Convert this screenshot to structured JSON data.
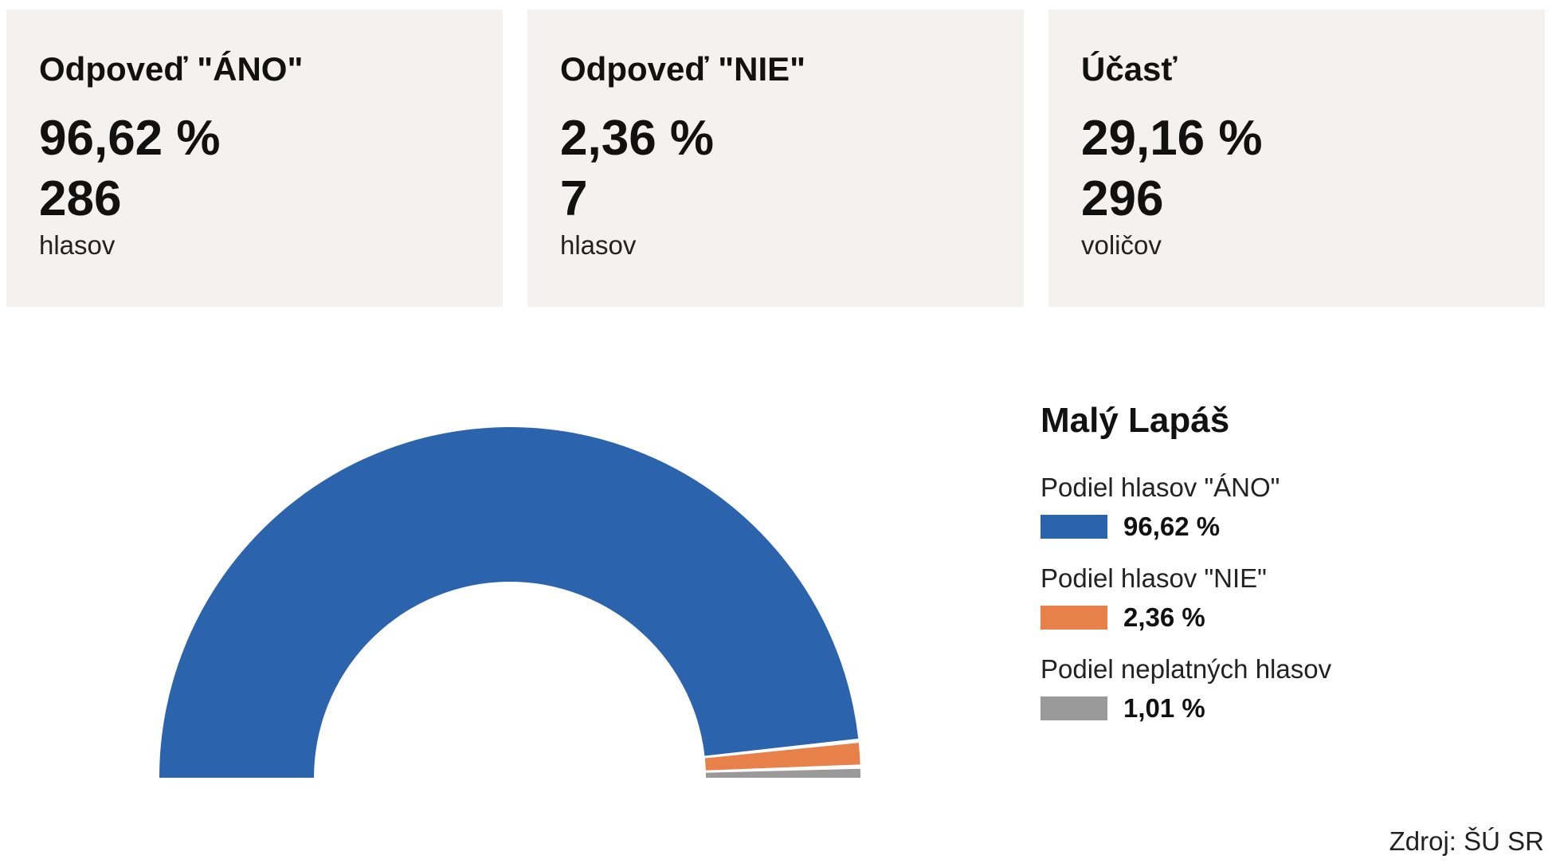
{
  "cards": [
    {
      "title": "Odpoveď \"ÁNO\"",
      "percent": "96,62 %",
      "count": "286",
      "unit": "hlasov"
    },
    {
      "title": "Odpoveď \"NIE\"",
      "percent": "2,36 %",
      "count": "7",
      "unit": "hlasov"
    },
    {
      "title": "Účasť",
      "percent": "29,16 %",
      "count": "296",
      "unit": "voličov"
    }
  ],
  "legend": {
    "title": "Malý Lapáš",
    "items": [
      {
        "label": "Podiel hlasov \"ÁNO\"",
        "value": "96,62 %",
        "color": "#2c63ad"
      },
      {
        "label": "Podiel hlasov \"NIE\"",
        "value": "2,36 %",
        "color": "#e8804a"
      },
      {
        "label": "Podiel neplatných hlasov",
        "value": "1,01 %",
        "color": "#999999"
      }
    ]
  },
  "source": "Zdroj: ŠÚ SR",
  "chart_data": {
    "type": "pie",
    "variant": "semicircle-donut",
    "title": "Malý Lapáš",
    "slices": [
      {
        "name": "Podiel hlasov \"ÁNO\"",
        "value": 96.62,
        "color": "#2c63ad"
      },
      {
        "name": "Podiel hlasov \"NIE\"",
        "value": 2.36,
        "color": "#e8804a"
      },
      {
        "name": "Podiel neplatných hlasov",
        "value": 1.01,
        "color": "#999999"
      }
    ],
    "legend": "right"
  }
}
